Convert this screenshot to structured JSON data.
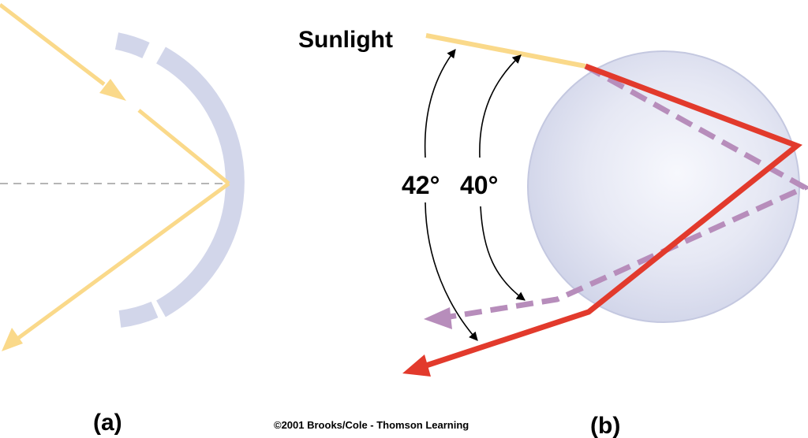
{
  "labels": {
    "sunlight": "Sunlight",
    "angle_red": "42°",
    "angle_violet": "40°",
    "panel_a": "(a)",
    "panel_b": "(b)",
    "copyright": "©2001 Brooks/Cole - Thomson Learning"
  },
  "colors": {
    "sunlight": "#fad98a",
    "red_ray": "#e23a2c",
    "violet_ray": "#b78dbb",
    "drop_fill": "#d8dcee",
    "reflector": "#d2d6ea",
    "axis": "#b5b5b5",
    "arrow": "#000000"
  }
}
